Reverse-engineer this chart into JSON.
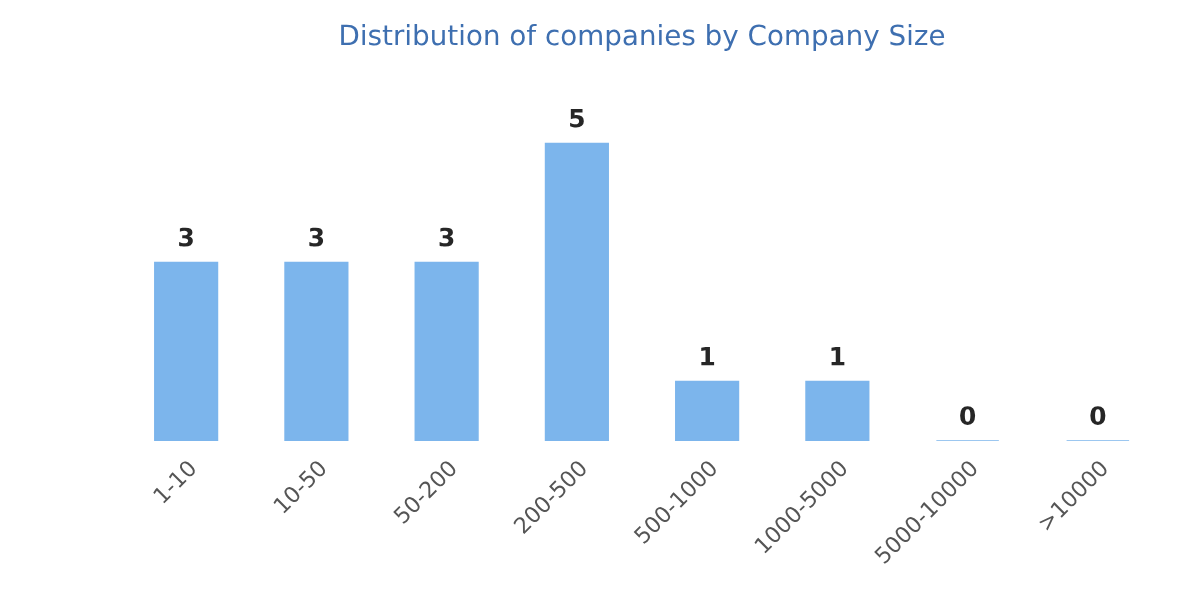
{
  "chart_data": {
    "type": "bar",
    "title": "Distribution of companies by Company Size",
    "categories": [
      "1-10",
      "10-50",
      "50-200",
      "200-500",
      "500-1000",
      "1000-5000",
      "5000-10000",
      ">10000"
    ],
    "values": [
      3,
      3,
      3,
      5,
      1,
      1,
      0,
      0
    ],
    "color": "#7cb5ec",
    "data_labels": true,
    "grid": false,
    "legend": false
  }
}
